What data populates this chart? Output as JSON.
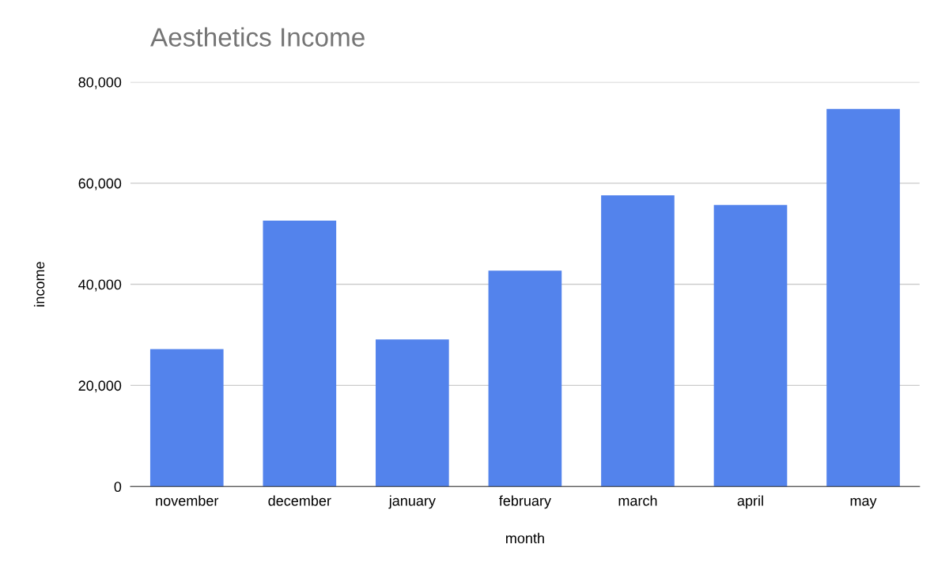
{
  "chart_data": {
    "type": "bar",
    "title": "Aesthetics Income",
    "xlabel": "month",
    "ylabel": "income",
    "categories": [
      "november",
      "december",
      "january",
      "february",
      "march",
      "april",
      "may"
    ],
    "values": [
      27200,
      52600,
      29100,
      42700,
      57600,
      55700,
      74700
    ],
    "color": "#5383ec",
    "ylim": [
      0,
      80000
    ],
    "yticks": [
      {
        "value": 0,
        "label": "0"
      },
      {
        "value": 20000,
        "label": "20,000"
      },
      {
        "value": 40000,
        "label": "40,000"
      },
      {
        "value": 60000,
        "label": "60,000"
      },
      {
        "value": 80000,
        "label": "80,000"
      }
    ],
    "grid": "y",
    "legend": false
  }
}
